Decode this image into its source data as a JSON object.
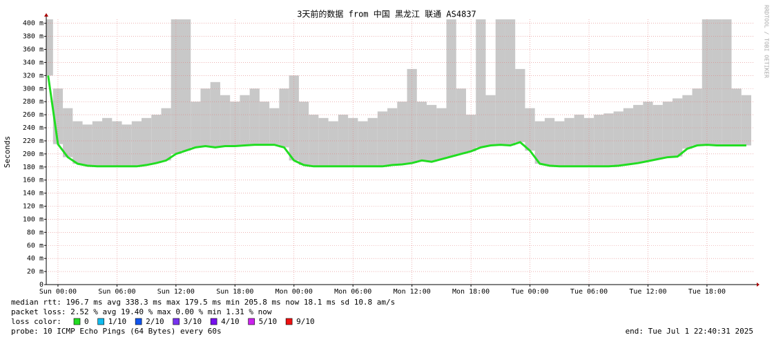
{
  "chart_data": {
    "type": "line",
    "title": "3天前的数据 from 中国 黑龙江 联通 AS4837",
    "y_label": "Seconds",
    "side_text": "RRDTOOL / TOBI OETIKER",
    "x": [
      -1,
      0,
      1,
      2,
      3,
      4,
      5,
      6,
      7,
      8,
      9,
      10,
      11,
      12,
      13,
      14,
      15,
      16,
      17,
      18,
      19,
      20,
      21,
      22,
      23,
      24,
      25,
      26,
      27,
      28,
      29,
      30,
      31,
      32,
      33,
      34,
      35,
      36,
      37,
      38,
      39,
      40,
      41,
      42,
      43,
      44,
      45,
      46,
      47,
      48,
      49,
      50,
      51,
      52,
      53,
      54,
      55,
      56,
      57,
      58,
      59,
      60,
      61,
      62,
      63,
      64,
      65,
      66,
      67,
      68,
      69,
      70
    ],
    "series": [
      {
        "color": "#22dd22",
        "values": [
          320,
          215,
          195,
          185,
          182,
          181,
          181,
          181,
          181,
          181,
          183,
          186,
          190,
          200,
          205,
          210,
          212,
          210,
          212,
          212,
          213,
          214,
          214,
          214,
          210,
          190,
          183,
          181,
          181,
          181,
          181,
          181,
          181,
          181,
          181,
          183,
          184,
          186,
          190,
          188,
          192,
          196,
          200,
          204,
          210,
          213,
          214,
          213,
          218,
          205,
          185,
          182,
          181,
          181,
          181,
          181,
          181,
          181,
          182,
          184,
          186,
          189,
          192,
          195,
          196,
          208,
          213,
          214,
          213,
          213,
          213,
          213
        ]
      }
    ],
    "smoke_color": "#c8c8c8",
    "smoke_high": [
      410,
      300,
      270,
      250,
      245,
      250,
      255,
      250,
      245,
      250,
      255,
      260,
      270,
      410,
      410,
      280,
      300,
      310,
      290,
      280,
      290,
      300,
      280,
      270,
      300,
      320,
      280,
      260,
      255,
      250,
      260,
      255,
      250,
      255,
      265,
      270,
      280,
      330,
      280,
      275,
      270,
      410,
      300,
      260,
      410,
      290,
      410,
      410,
      330,
      270,
      250,
      255,
      250,
      255,
      260,
      255,
      260,
      262,
      265,
      270,
      275,
      280,
      275,
      280,
      285,
      290,
      300,
      410,
      410,
      410,
      300,
      290
    ],
    "xlim": [
      -1.19,
      70.78
    ],
    "xticks": [
      {
        "value": 0,
        "label": "Sun 00:00"
      },
      {
        "value": 6,
        "label": "Sun 06:00"
      },
      {
        "value": 12,
        "label": "Sun 12:00"
      },
      {
        "value": 18,
        "label": "Sun 18:00"
      },
      {
        "value": 24,
        "label": "Mon 00:00"
      },
      {
        "value": 30,
        "label": "Mon 06:00"
      },
      {
        "value": 36,
        "label": "Mon 12:00"
      },
      {
        "value": 42,
        "label": "Mon 18:00"
      },
      {
        "value": 48,
        "label": "Tue 00:00"
      },
      {
        "value": 54,
        "label": "Tue 06:00"
      },
      {
        "value": 60,
        "label": "Tue 12:00"
      },
      {
        "value": 66,
        "label": "Tue 18:00"
      }
    ],
    "ylim": [
      0,
      406
    ],
    "yticks": [
      0,
      {
        "value": 20,
        "label": "20 m"
      },
      {
        "value": 40,
        "label": "40 m"
      },
      {
        "value": 60,
        "label": "60 m"
      },
      {
        "value": 80,
        "label": "80 m"
      },
      {
        "value": 100,
        "label": "100 m"
      },
      {
        "value": 120,
        "label": "120 m"
      },
      {
        "value": 140,
        "label": "140 m"
      },
      {
        "value": 160,
        "label": "160 m"
      },
      {
        "value": 180,
        "label": "180 m"
      },
      {
        "value": 200,
        "label": "200 m"
      },
      {
        "value": 220,
        "label": "220 m"
      },
      {
        "value": 240,
        "label": "240 m"
      },
      {
        "value": 260,
        "label": "260 m"
      },
      {
        "value": 280,
        "label": "280 m"
      },
      {
        "value": 300,
        "label": "300 m"
      },
      {
        "value": 320,
        "label": "320 m"
      },
      {
        "value": 340,
        "label": "340 m"
      },
      {
        "value": 360,
        "label": "360 m"
      },
      {
        "value": 380,
        "label": "380 m"
      },
      {
        "value": 400,
        "label": "400 m"
      }
    ],
    "grid": true
  },
  "footer": {
    "rtt": "median rtt:  196.7 ms avg  338.3 ms max  179.5 ms min  205.8 ms now  18.1 ms sd  10.8   am/s",
    "loss": "packet loss: 2.52 % avg  19.40 % max  0.00 % min  1.31 % now",
    "loss_color_label": "loss color:",
    "loss_colors": [
      {
        "label": "0",
        "color": "#22dd22"
      },
      {
        "label": "1/10",
        "color": "#11bbee"
      },
      {
        "label": "2/10",
        "color": "#1155ee"
      },
      {
        "label": "3/10",
        "color": "#7733ee"
      },
      {
        "label": "4/10",
        "color": "#7711ee"
      },
      {
        "label": "5/10",
        "color": "#cc22ee"
      },
      {
        "label": "9/10",
        "color": "#ee1111"
      }
    ],
    "probe": "probe:       10 ICMP Echo Pings (64 Bytes) every 60s",
    "end": "end: Tue Jul  1 22:40:31 2025"
  }
}
